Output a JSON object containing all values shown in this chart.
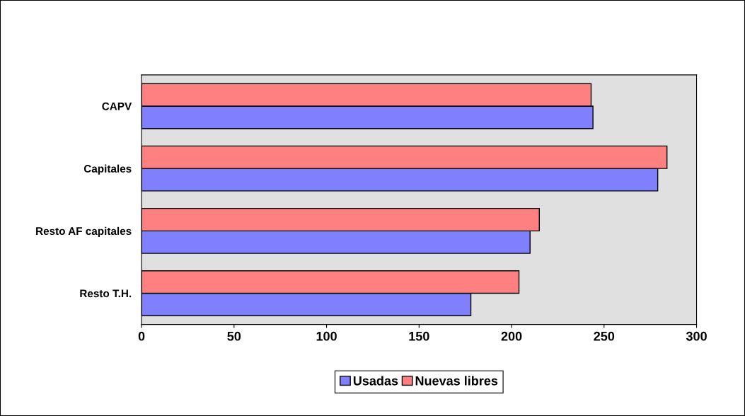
{
  "chart_data": {
    "type": "bar",
    "orientation": "horizontal",
    "categories": [
      "CAPV",
      "Capitales",
      "Resto AF capitales",
      "Resto T.H."
    ],
    "series": [
      {
        "name": "Usadas",
        "color": "#8080ff",
        "values": [
          244,
          279,
          210,
          178
        ]
      },
      {
        "name": "Nuevas libres",
        "color": "#ff8080",
        "values": [
          243,
          284,
          215,
          204
        ]
      }
    ],
    "xlim": [
      0,
      300
    ],
    "xticks": [
      0,
      50,
      100,
      150,
      200,
      250,
      300
    ],
    "grid": false,
    "legend": "bottom"
  }
}
